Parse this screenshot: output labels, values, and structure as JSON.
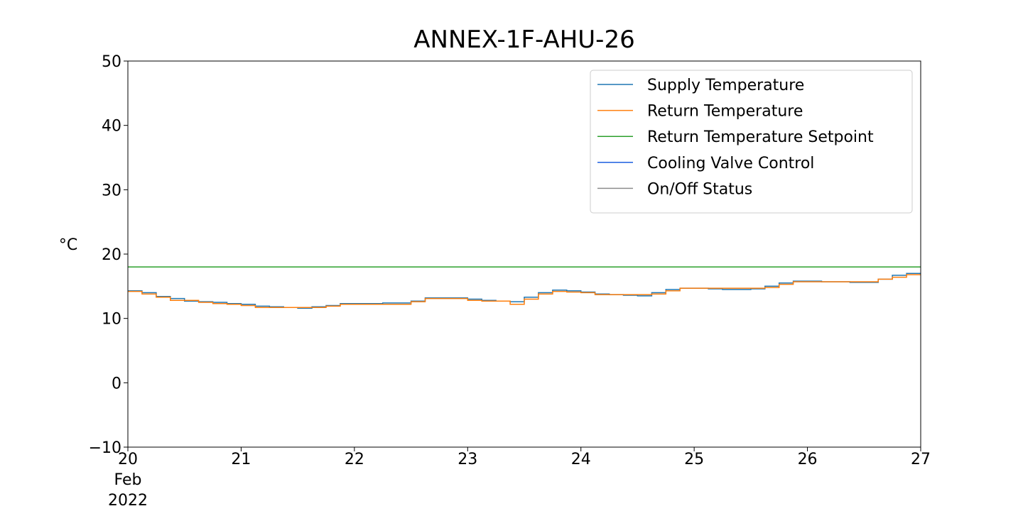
{
  "chart_data": {
    "type": "line",
    "title": "ANNEX-1F-AHU-26",
    "xlabel": "",
    "ylabel": "°C",
    "xlim": [
      "2022-02-20",
      "2022-02-27"
    ],
    "ylim": [
      -10,
      50
    ],
    "y_ticks": [
      {
        "value": -10,
        "label": "−10"
      },
      {
        "value": 0,
        "label": "0"
      },
      {
        "value": 10,
        "label": "10"
      },
      {
        "value": 20,
        "label": "20"
      },
      {
        "value": 30,
        "label": "30"
      },
      {
        "value": 40,
        "label": "40"
      },
      {
        "value": 50,
        "label": "50"
      }
    ],
    "x_ticks": [
      {
        "value": "2022-02-20",
        "lines": [
          "20",
          "Feb",
          "2022"
        ]
      },
      {
        "value": "2022-02-21",
        "lines": [
          "21"
        ]
      },
      {
        "value": "2022-02-22",
        "lines": [
          "22"
        ]
      },
      {
        "value": "2022-02-23",
        "lines": [
          "23"
        ]
      },
      {
        "value": "2022-02-24",
        "lines": [
          "24"
        ]
      },
      {
        "value": "2022-02-25",
        "lines": [
          "25"
        ]
      },
      {
        "value": "2022-02-26",
        "lines": [
          "26"
        ]
      },
      {
        "value": "2022-02-27",
        "lines": [
          "27"
        ]
      }
    ],
    "grid": false,
    "legend_position": "top-right",
    "series": [
      {
        "name": "Supply Temperature",
        "color": "#1f77b4",
        "x": [
          "2022-02-20T00:00",
          "2022-02-20T03:00",
          "2022-02-20T06:00",
          "2022-02-20T09:00",
          "2022-02-20T12:00",
          "2022-02-20T15:00",
          "2022-02-20T18:00",
          "2022-02-20T21:00",
          "2022-02-21T00:00",
          "2022-02-21T03:00",
          "2022-02-21T06:00",
          "2022-02-21T09:00",
          "2022-02-21T12:00",
          "2022-02-21T15:00",
          "2022-02-21T18:00",
          "2022-02-21T21:00",
          "2022-02-22T00:00",
          "2022-02-22T03:00",
          "2022-02-22T06:00",
          "2022-02-22T09:00",
          "2022-02-22T12:00",
          "2022-02-22T15:00",
          "2022-02-22T18:00",
          "2022-02-22T21:00",
          "2022-02-23T00:00",
          "2022-02-23T03:00",
          "2022-02-23T06:00",
          "2022-02-23T09:00",
          "2022-02-23T12:00",
          "2022-02-23T15:00",
          "2022-02-23T18:00",
          "2022-02-23T21:00",
          "2022-02-24T00:00",
          "2022-02-24T03:00",
          "2022-02-24T06:00",
          "2022-02-24T09:00",
          "2022-02-24T12:00",
          "2022-02-24T15:00",
          "2022-02-24T18:00",
          "2022-02-24T21:00",
          "2022-02-25T00:00",
          "2022-02-25T03:00",
          "2022-02-25T06:00",
          "2022-02-25T09:00",
          "2022-02-25T12:00",
          "2022-02-25T15:00",
          "2022-02-25T18:00",
          "2022-02-25T21:00",
          "2022-02-26T00:00",
          "2022-02-26T03:00",
          "2022-02-26T06:00",
          "2022-02-26T09:00",
          "2022-02-26T12:00",
          "2022-02-26T15:00",
          "2022-02-26T18:00",
          "2022-02-26T21:00",
          "2022-02-27T00:00"
        ],
        "y": [
          14.3,
          14.0,
          13.4,
          13.1,
          12.7,
          12.6,
          12.5,
          12.3,
          12.2,
          11.9,
          11.8,
          11.7,
          11.6,
          11.8,
          12.0,
          12.3,
          12.3,
          12.3,
          12.4,
          12.4,
          12.7,
          13.2,
          13.2,
          13.2,
          13.0,
          12.8,
          12.7,
          12.6,
          13.3,
          14.0,
          14.4,
          14.3,
          14.1,
          13.8,
          13.7,
          13.6,
          13.5,
          14.0,
          14.5,
          14.7,
          14.7,
          14.6,
          14.5,
          14.5,
          14.6,
          15.0,
          15.5,
          15.8,
          15.8,
          15.7,
          15.7,
          15.6,
          15.6,
          16.1,
          16.7,
          17.0,
          17.0
        ]
      },
      {
        "name": "Return Temperature",
        "color": "#ff7f0e",
        "x": [
          "2022-02-20T00:00",
          "2022-02-20T03:00",
          "2022-02-20T06:00",
          "2022-02-20T09:00",
          "2022-02-20T12:00",
          "2022-02-20T15:00",
          "2022-02-20T18:00",
          "2022-02-20T21:00",
          "2022-02-21T00:00",
          "2022-02-21T03:00",
          "2022-02-21T06:00",
          "2022-02-21T09:00",
          "2022-02-21T12:00",
          "2022-02-21T15:00",
          "2022-02-21T18:00",
          "2022-02-21T21:00",
          "2022-02-22T00:00",
          "2022-02-22T03:00",
          "2022-02-22T06:00",
          "2022-02-22T09:00",
          "2022-02-22T12:00",
          "2022-02-22T15:00",
          "2022-02-22T18:00",
          "2022-02-22T21:00",
          "2022-02-23T00:00",
          "2022-02-23T03:00",
          "2022-02-23T06:00",
          "2022-02-23T09:00",
          "2022-02-23T12:00",
          "2022-02-23T15:00",
          "2022-02-23T18:00",
          "2022-02-23T21:00",
          "2022-02-24T00:00",
          "2022-02-24T03:00",
          "2022-02-24T06:00",
          "2022-02-24T09:00",
          "2022-02-24T12:00",
          "2022-02-24T15:00",
          "2022-02-24T18:00",
          "2022-02-24T21:00",
          "2022-02-25T00:00",
          "2022-02-25T03:00",
          "2022-02-25T06:00",
          "2022-02-25T09:00",
          "2022-02-25T12:00",
          "2022-02-25T15:00",
          "2022-02-25T18:00",
          "2022-02-25T21:00",
          "2022-02-26T00:00",
          "2022-02-26T03:00",
          "2022-02-26T06:00",
          "2022-02-26T09:00",
          "2022-02-26T12:00",
          "2022-02-26T15:00",
          "2022-02-26T18:00",
          "2022-02-26T21:00",
          "2022-02-27T00:00"
        ],
        "y": [
          14.2,
          13.8,
          13.3,
          12.8,
          12.8,
          12.5,
          12.3,
          12.2,
          12.0,
          11.7,
          11.7,
          11.7,
          11.7,
          11.7,
          11.9,
          12.2,
          12.2,
          12.2,
          12.2,
          12.2,
          12.6,
          13.1,
          13.1,
          13.1,
          12.8,
          12.7,
          12.7,
          12.2,
          13.0,
          13.8,
          14.2,
          14.1,
          14.0,
          13.7,
          13.7,
          13.7,
          13.7,
          13.8,
          14.3,
          14.7,
          14.7,
          14.7,
          14.7,
          14.7,
          14.7,
          14.8,
          15.3,
          15.7,
          15.7,
          15.7,
          15.7,
          15.7,
          15.7,
          16.1,
          16.4,
          16.8,
          16.8
        ]
      },
      {
        "name": "Return Temperature Setpoint",
        "color": "#2ca02c",
        "x": [
          "2022-02-20T00:00",
          "2022-02-27T00:00"
        ],
        "y": [
          18.0,
          18.0
        ]
      },
      {
        "name": "Cooling Valve Control",
        "color": "#1c5fe0",
        "x": [],
        "y": []
      },
      {
        "name": "On/Off Status",
        "color": "#8c8c8c",
        "x": [],
        "y": []
      }
    ]
  }
}
